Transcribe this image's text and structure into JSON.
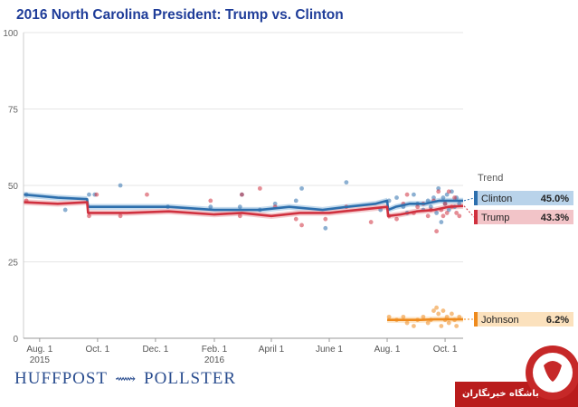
{
  "chart_data": {
    "type": "line",
    "title": "2016 North Carolina President: Trump vs. Clinton",
    "ylim": [
      0,
      100
    ],
    "yticks": [
      0,
      25,
      50,
      75,
      100
    ],
    "xlim": [
      "2015-07-15",
      "2016-10-20"
    ],
    "xticks": [
      {
        "date": "2015-08-01",
        "label": "Aug. 1",
        "sublabel": "2015"
      },
      {
        "date": "2015-10-01",
        "label": "Oct. 1",
        "sublabel": ""
      },
      {
        "date": "2015-12-01",
        "label": "Dec. 1",
        "sublabel": ""
      },
      {
        "date": "2016-02-01",
        "label": "Feb. 1",
        "sublabel": "2016"
      },
      {
        "date": "2016-04-01",
        "label": "April 1",
        "sublabel": ""
      },
      {
        "date": "2016-06-01",
        "label": "June 1",
        "sublabel": ""
      },
      {
        "date": "2016-08-01",
        "label": "Aug. 1",
        "sublabel": ""
      },
      {
        "date": "2016-10-01",
        "label": "Oct. 1",
        "sublabel": ""
      }
    ],
    "legend_title": "Trend",
    "series": [
      {
        "name": "Clinton",
        "value_label": "45.0%",
        "color": "#2d6fad",
        "band_color": "#b9d3ea",
        "trend": [
          [
            "2015-07-15",
            47
          ],
          [
            "2015-08-20",
            46
          ],
          [
            "2015-09-20",
            45.5
          ],
          [
            "2015-09-21",
            43
          ],
          [
            "2015-11-01",
            43
          ],
          [
            "2015-12-15",
            43
          ],
          [
            "2016-02-01",
            42
          ],
          [
            "2016-03-01",
            42
          ],
          [
            "2016-03-20",
            42
          ],
          [
            "2016-04-20",
            43
          ],
          [
            "2016-05-25",
            42
          ],
          [
            "2016-06-20",
            43
          ],
          [
            "2016-07-20",
            44
          ],
          [
            "2016-08-01",
            45
          ],
          [
            "2016-08-02",
            42
          ],
          [
            "2016-08-10",
            43
          ],
          [
            "2016-08-25",
            44
          ],
          [
            "2016-09-10",
            44
          ],
          [
            "2016-09-25",
            45
          ],
          [
            "2016-10-05",
            45
          ],
          [
            "2016-10-20",
            45
          ]
        ],
        "polls": [
          [
            "2015-07-18",
            47
          ],
          [
            "2015-08-28",
            42
          ],
          [
            "2015-09-22",
            47
          ],
          [
            "2015-09-28",
            47
          ],
          [
            "2015-10-25",
            50
          ],
          [
            "2015-12-14",
            43
          ],
          [
            "2016-01-28",
            43
          ],
          [
            "2016-02-28",
            43
          ],
          [
            "2016-03-01",
            47
          ],
          [
            "2016-03-20",
            42
          ],
          [
            "2016-04-05",
            44
          ],
          [
            "2016-04-27",
            45
          ],
          [
            "2016-05-03",
            49
          ],
          [
            "2016-05-28",
            36
          ],
          [
            "2016-06-19",
            51
          ],
          [
            "2016-07-25",
            42
          ],
          [
            "2016-08-03",
            45
          ],
          [
            "2016-08-11",
            46
          ],
          [
            "2016-08-18",
            43
          ],
          [
            "2016-08-22",
            41
          ],
          [
            "2016-08-29",
            47
          ],
          [
            "2016-09-02",
            44
          ],
          [
            "2016-09-08",
            42
          ],
          [
            "2016-09-13",
            45
          ],
          [
            "2016-09-16",
            43
          ],
          [
            "2016-09-19",
            46
          ],
          [
            "2016-09-22",
            41
          ],
          [
            "2016-09-24",
            49
          ],
          [
            "2016-09-27",
            38
          ],
          [
            "2016-09-29",
            46
          ],
          [
            "2016-10-01",
            44
          ],
          [
            "2016-10-03",
            47
          ],
          [
            "2016-10-05",
            42
          ],
          [
            "2016-10-08",
            48
          ],
          [
            "2016-10-11",
            43
          ],
          [
            "2016-10-13",
            46
          ],
          [
            "2016-10-16",
            44
          ]
        ]
      },
      {
        "name": "Trump",
        "value_label": "43.3%",
        "color": "#d0313f",
        "band_color": "#f2c4c8",
        "trend": [
          [
            "2015-07-15",
            44.5
          ],
          [
            "2015-08-20",
            44
          ],
          [
            "2015-09-20",
            44.5
          ],
          [
            "2015-09-21",
            41
          ],
          [
            "2015-11-01",
            41
          ],
          [
            "2015-12-15",
            41.5
          ],
          [
            "2016-02-01",
            40.5
          ],
          [
            "2016-03-01",
            41
          ],
          [
            "2016-04-01",
            40
          ],
          [
            "2016-05-01",
            41
          ],
          [
            "2016-06-01",
            41
          ],
          [
            "2016-07-01",
            42
          ],
          [
            "2016-08-01",
            43
          ],
          [
            "2016-08-02",
            40
          ],
          [
            "2016-08-15",
            40.5
          ],
          [
            "2016-09-01",
            41.5
          ],
          [
            "2016-09-20",
            42
          ],
          [
            "2016-10-05",
            43
          ],
          [
            "2016-10-20",
            43.3
          ]
        ],
        "polls": [
          [
            "2015-07-18",
            45
          ],
          [
            "2015-09-22",
            40
          ],
          [
            "2015-09-30",
            47
          ],
          [
            "2015-10-25",
            40
          ],
          [
            "2015-11-22",
            47
          ],
          [
            "2016-01-28",
            45
          ],
          [
            "2016-02-28",
            40
          ],
          [
            "2016-03-01",
            47
          ],
          [
            "2016-03-20",
            49
          ],
          [
            "2016-04-05",
            43
          ],
          [
            "2016-04-27",
            39
          ],
          [
            "2016-05-03",
            37
          ],
          [
            "2016-05-28",
            39
          ],
          [
            "2016-06-19",
            43
          ],
          [
            "2016-07-15",
            38
          ],
          [
            "2016-08-03",
            40
          ],
          [
            "2016-08-11",
            39
          ],
          [
            "2016-08-18",
            44
          ],
          [
            "2016-08-22",
            47
          ],
          [
            "2016-08-29",
            41
          ],
          [
            "2016-09-02",
            43
          ],
          [
            "2016-09-08",
            44
          ],
          [
            "2016-09-13",
            40
          ],
          [
            "2016-09-16",
            42
          ],
          [
            "2016-09-19",
            45
          ],
          [
            "2016-09-22",
            35
          ],
          [
            "2016-09-24",
            48
          ],
          [
            "2016-09-27",
            42
          ],
          [
            "2016-09-29",
            40
          ],
          [
            "2016-10-01",
            44
          ],
          [
            "2016-10-03",
            41
          ],
          [
            "2016-10-05",
            48
          ],
          [
            "2016-10-08",
            43
          ],
          [
            "2016-10-11",
            46
          ],
          [
            "2016-10-13",
            41
          ],
          [
            "2016-10-16",
            40
          ]
        ]
      },
      {
        "name": "Johnson",
        "value_label": "6.2%",
        "color": "#ee8a1d",
        "band_color": "#fbe1bd",
        "trend": [
          [
            "2016-08-01",
            6
          ],
          [
            "2016-08-20",
            6
          ],
          [
            "2016-09-05",
            6
          ],
          [
            "2016-09-20",
            6.2
          ],
          [
            "2016-10-05",
            6.2
          ],
          [
            "2016-10-20",
            6.2
          ]
        ],
        "polls": [
          [
            "2016-08-03",
            7
          ],
          [
            "2016-08-11",
            6
          ],
          [
            "2016-08-18",
            7
          ],
          [
            "2016-08-22",
            5
          ],
          [
            "2016-08-29",
            4
          ],
          [
            "2016-09-02",
            6
          ],
          [
            "2016-09-08",
            7
          ],
          [
            "2016-09-13",
            5
          ],
          [
            "2016-09-16",
            6
          ],
          [
            "2016-09-19",
            9
          ],
          [
            "2016-09-22",
            10
          ],
          [
            "2016-09-24",
            8
          ],
          [
            "2016-09-27",
            4
          ],
          [
            "2016-09-29",
            9
          ],
          [
            "2016-10-01",
            6
          ],
          [
            "2016-10-03",
            7
          ],
          [
            "2016-10-05",
            5
          ],
          [
            "2016-10-08",
            8
          ],
          [
            "2016-10-11",
            6
          ],
          [
            "2016-10-13",
            4
          ],
          [
            "2016-10-16",
            7
          ]
        ]
      }
    ]
  },
  "branding": {
    "left": "HUFFPOST",
    "right": "POLLSTER",
    "watermark": "باشگاه خبرنگاران"
  }
}
